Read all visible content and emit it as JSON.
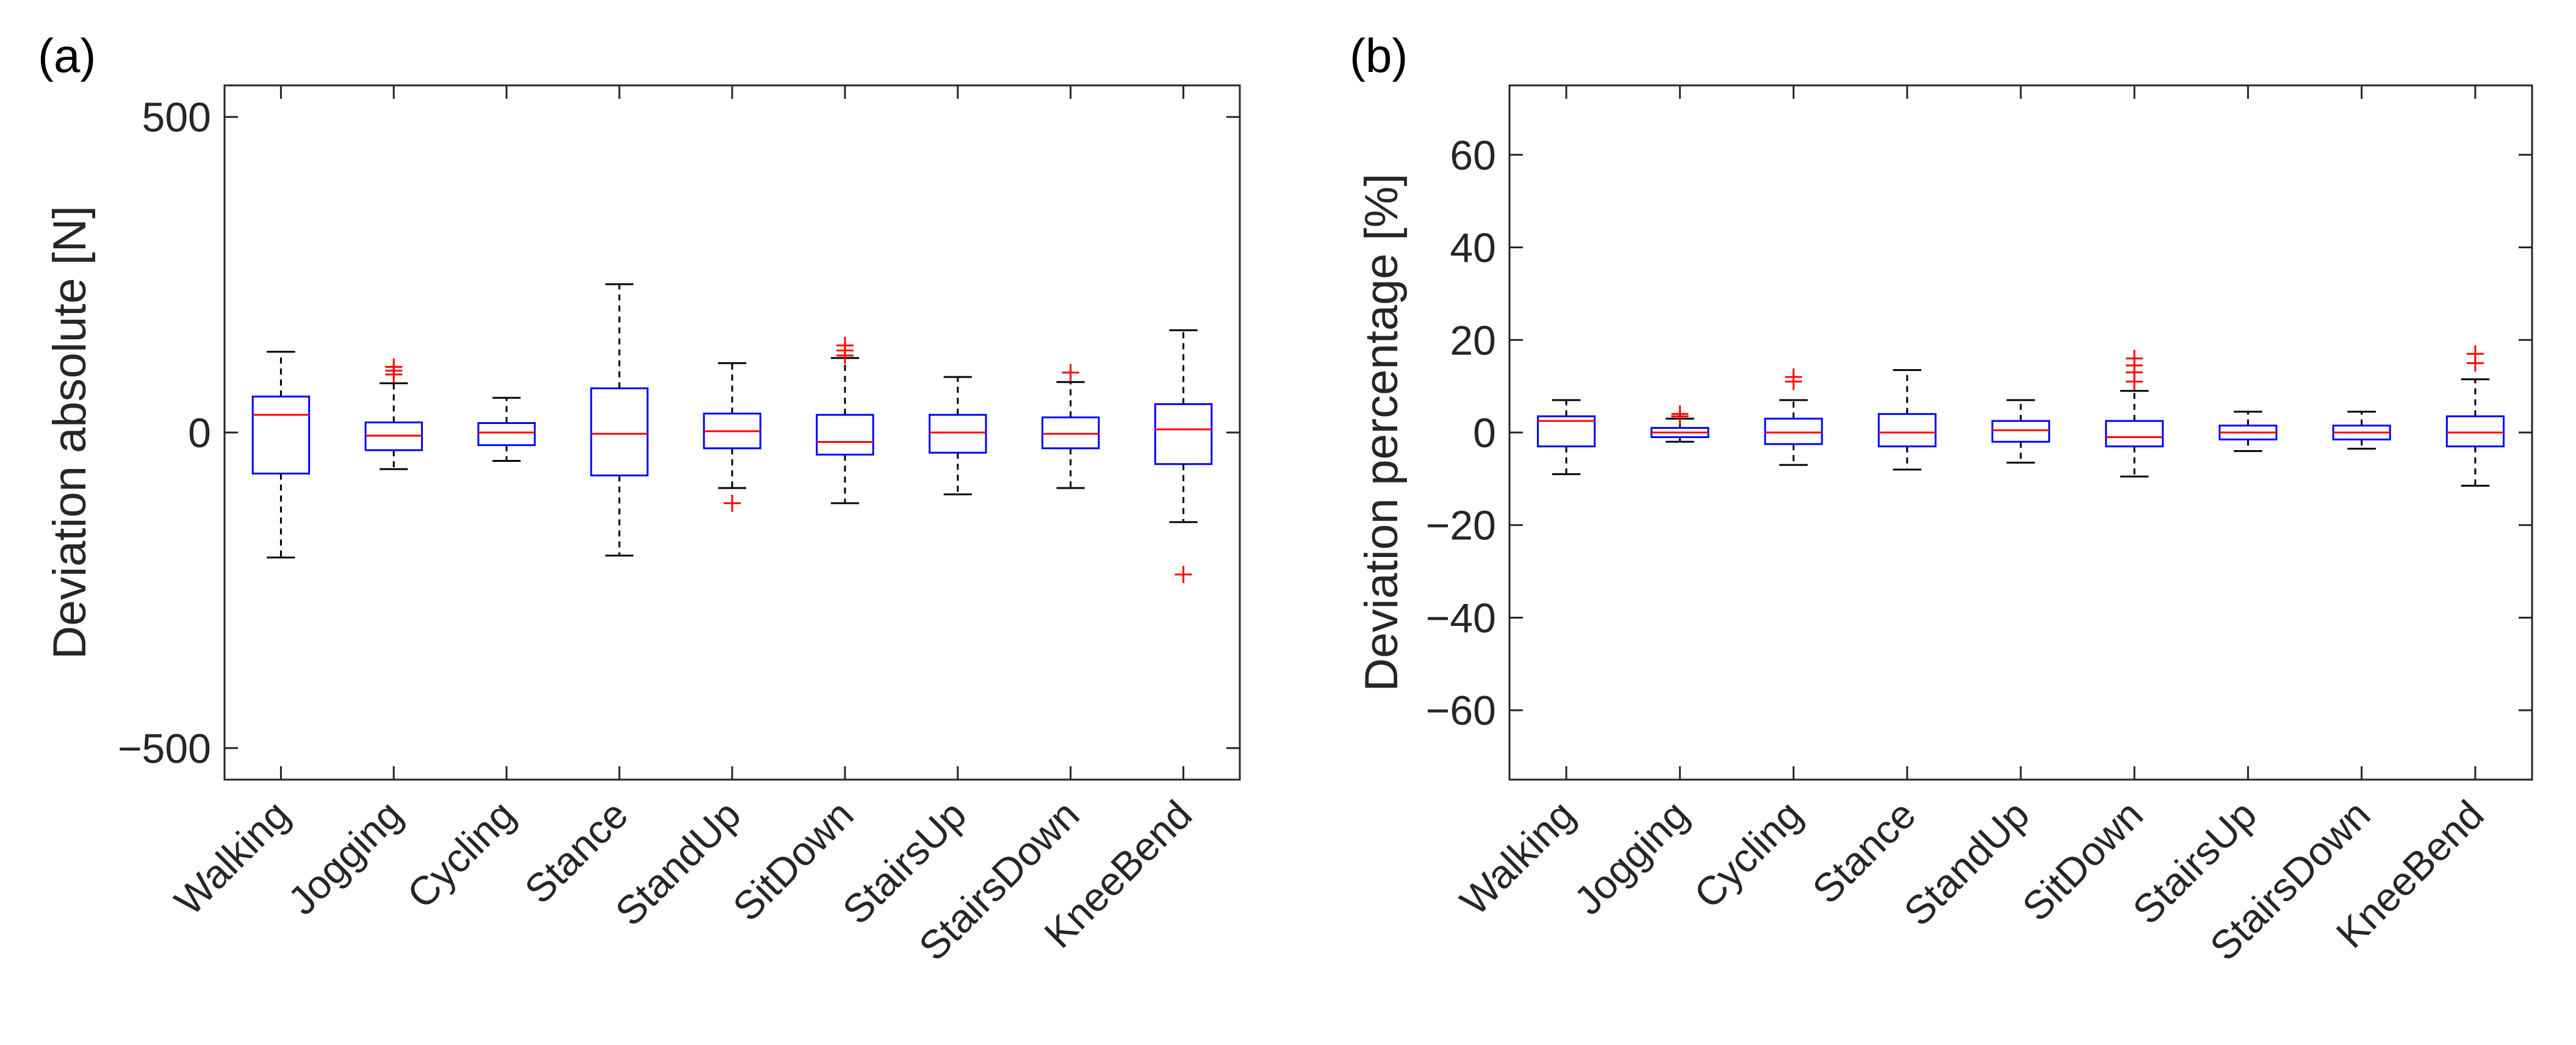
{
  "colors": {
    "box": "#0000ff",
    "median": "#ff0000",
    "outlier": "#ff0000",
    "whisker": "#000000",
    "axis": "#262626"
  },
  "chart_data": [
    {
      "type": "box",
      "panel_label": "(a)",
      "ylabel": "Deviation absolute [N]",
      "ylim": [
        -550,
        550
      ],
      "yticks": [
        -500,
        0,
        500
      ],
      "ytick_labels": [
        "−500",
        "0",
        "500"
      ],
      "categories": [
        "Walking",
        "Jogging",
        "Cycling",
        "Stance",
        "StandUp",
        "SitDown",
        "StairsUp",
        "StairsDown",
        "KneeBend"
      ],
      "boxes": [
        {
          "min": -198,
          "q1": -65,
          "median": 28,
          "q3": 57,
          "max": 128,
          "outliers": []
        },
        {
          "min": -58,
          "q1": -28,
          "median": -5,
          "q3": 16,
          "max": 78,
          "outliers": [
            92,
            98,
            104
          ]
        },
        {
          "min": -45,
          "q1": -20,
          "median": 0,
          "q3": 15,
          "max": 55,
          "outliers": []
        },
        {
          "min": -195,
          "q1": -68,
          "median": -2,
          "q3": 70,
          "max": 235,
          "outliers": []
        },
        {
          "min": -88,
          "q1": -25,
          "median": 2,
          "q3": 30,
          "max": 110,
          "outliers": [
            -112
          ]
        },
        {
          "min": -112,
          "q1": -35,
          "median": -15,
          "q3": 28,
          "max": 118,
          "outliers": [
            122,
            130,
            138
          ]
        },
        {
          "min": -98,
          "q1": -32,
          "median": 0,
          "q3": 28,
          "max": 88,
          "outliers": []
        },
        {
          "min": -88,
          "q1": -25,
          "median": -2,
          "q3": 24,
          "max": 80,
          "outliers": [
            95
          ]
        },
        {
          "min": -142,
          "q1": -50,
          "median": 5,
          "q3": 45,
          "max": 162,
          "outliers": [
            -225
          ]
        }
      ]
    },
    {
      "type": "box",
      "panel_label": "(b)",
      "ylabel": "Deviation percentage [%]",
      "ylim": [
        -75,
        75
      ],
      "yticks": [
        -60,
        -40,
        -20,
        0,
        20,
        40,
        60
      ],
      "ytick_labels": [
        "−60",
        "−40",
        "−20",
        "0",
        "20",
        "40",
        "60"
      ],
      "categories": [
        "Walking",
        "Jogging",
        "Cycling",
        "Stance",
        "StandUp",
        "SitDown",
        "StairsUp",
        "StairsDown",
        "KneeBend"
      ],
      "boxes": [
        {
          "min": -9,
          "q1": -3,
          "median": 2.5,
          "q3": 3.5,
          "max": 7,
          "outliers": []
        },
        {
          "min": -2,
          "q1": -1,
          "median": 0,
          "q3": 1,
          "max": 3,
          "outliers": [
            3.5,
            4
          ]
        },
        {
          "min": -7,
          "q1": -2.5,
          "median": 0,
          "q3": 3,
          "max": 7,
          "outliers": [
            11,
            12
          ]
        },
        {
          "min": -8,
          "q1": -3,
          "median": 0,
          "q3": 4,
          "max": 13.5,
          "outliers": []
        },
        {
          "min": -6.5,
          "q1": -2,
          "median": 0.5,
          "q3": 2.5,
          "max": 7,
          "outliers": []
        },
        {
          "min": -9.5,
          "q1": -3,
          "median": -1,
          "q3": 2.5,
          "max": 9,
          "outliers": [
            11,
            13,
            14.5,
            16
          ]
        },
        {
          "min": -4,
          "q1": -1.5,
          "median": 0,
          "q3": 1.5,
          "max": 4.5,
          "outliers": []
        },
        {
          "min": -3.5,
          "q1": -1.5,
          "median": 0,
          "q3": 1.5,
          "max": 4.5,
          "outliers": []
        },
        {
          "min": -11.5,
          "q1": -3,
          "median": 0,
          "q3": 3.5,
          "max": 11.5,
          "outliers": [
            15,
            17
          ]
        }
      ]
    }
  ]
}
